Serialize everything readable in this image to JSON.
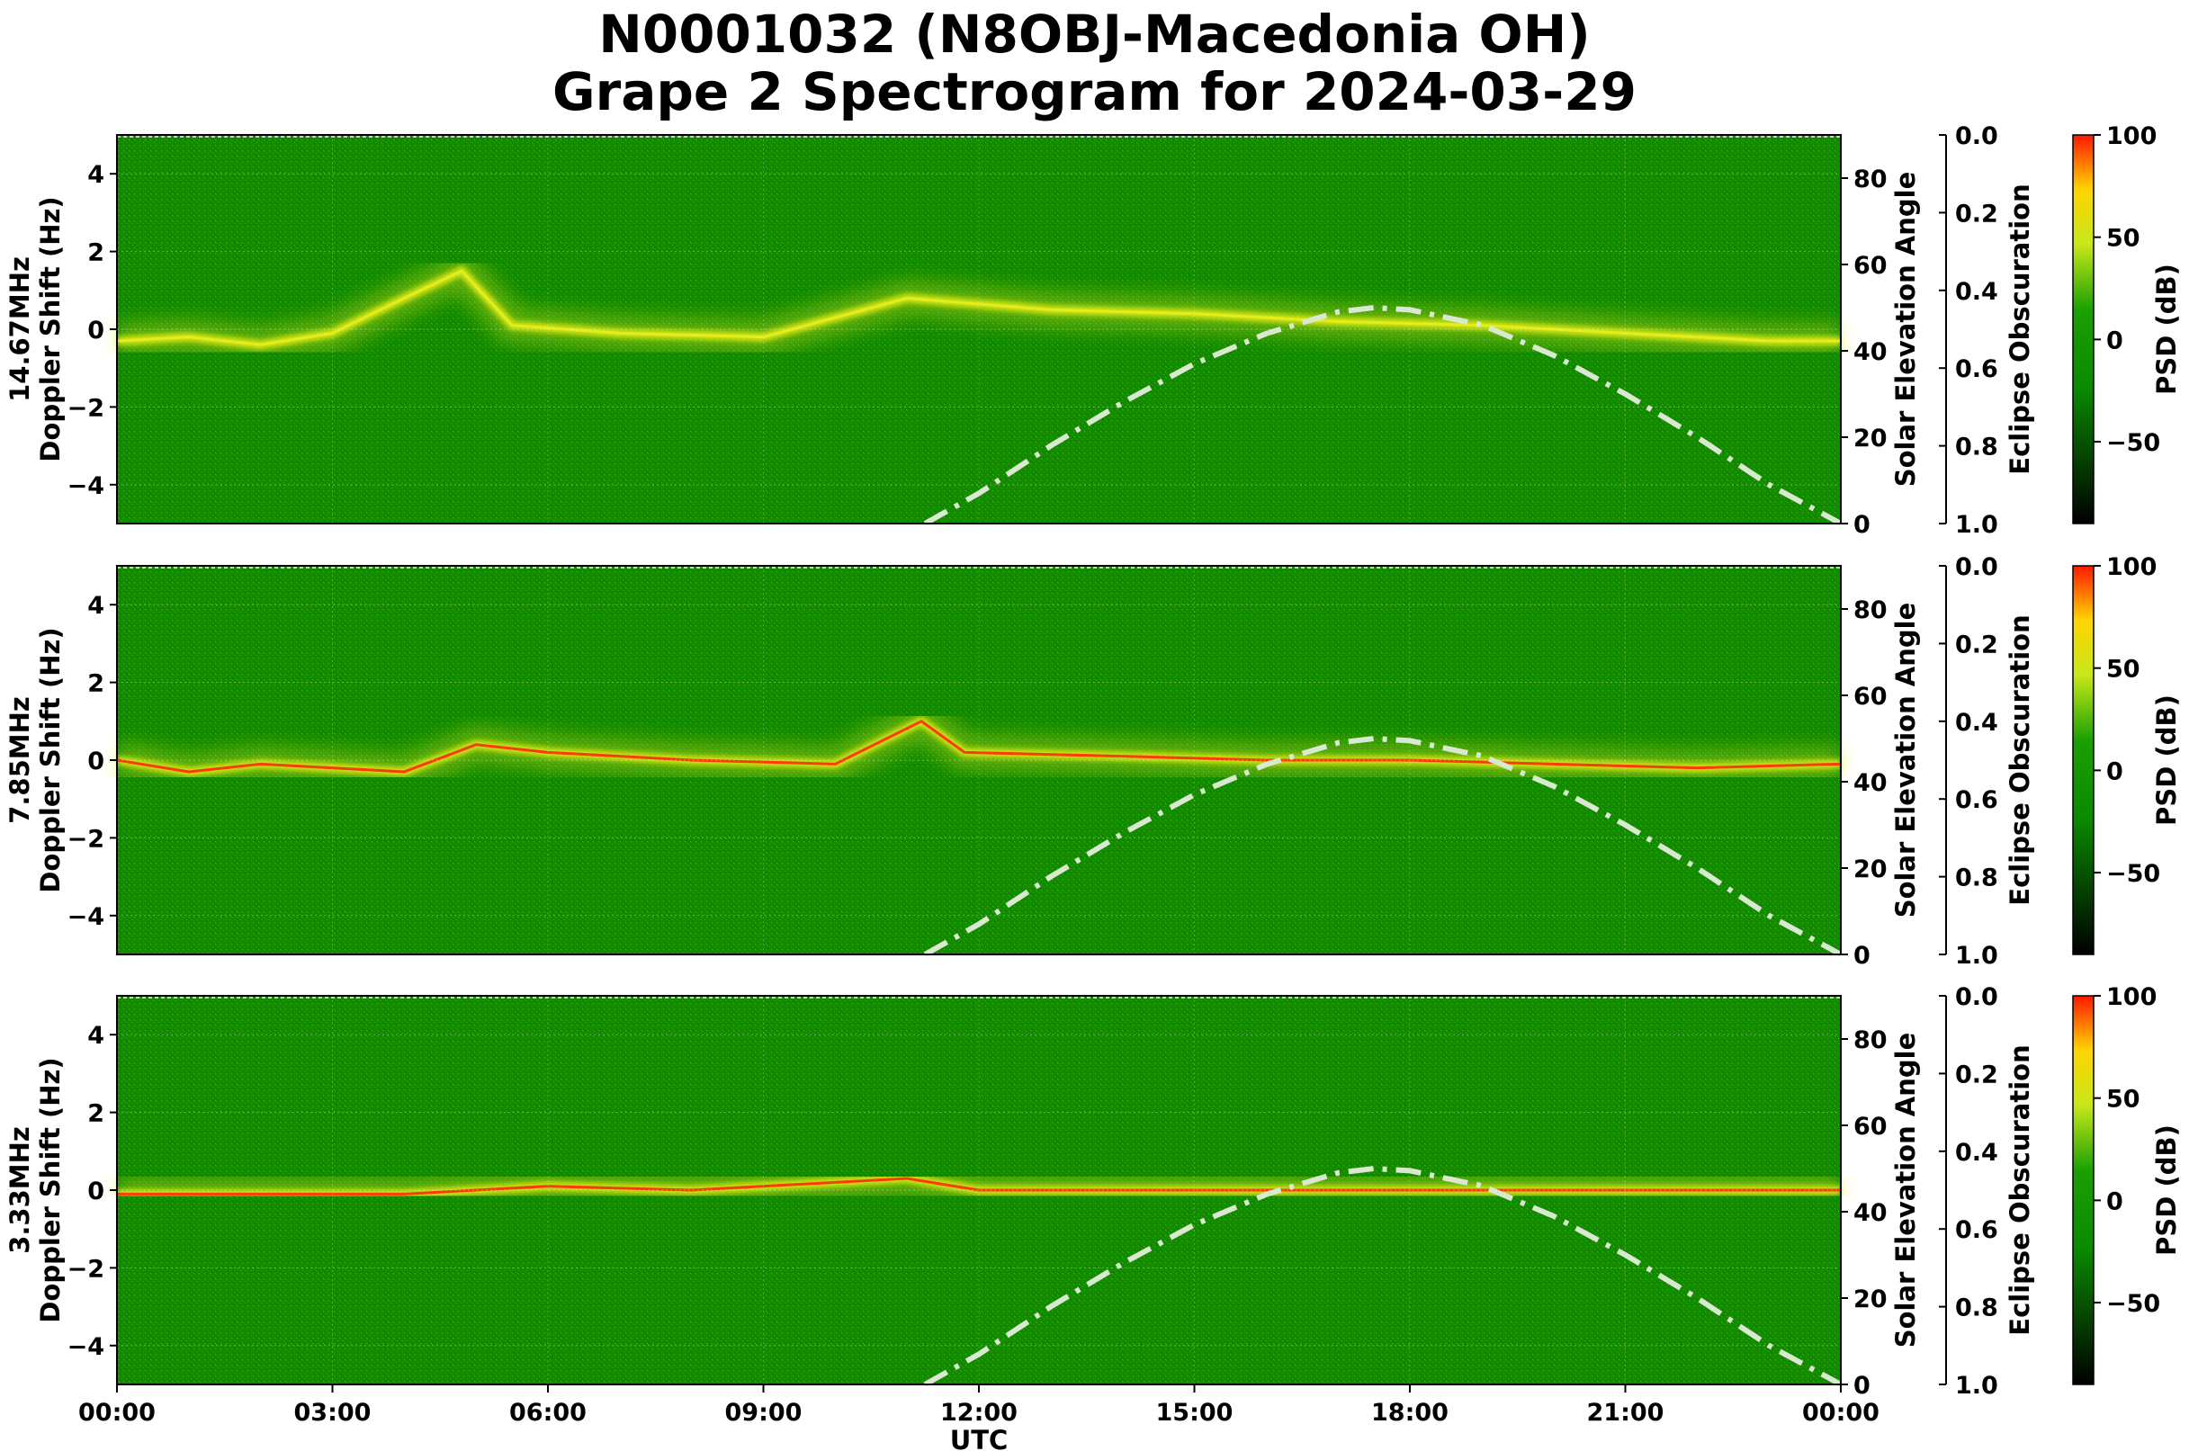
{
  "title_line1": "N0001032 (N8OBJ-Macedonia OH)",
  "title_line2": "Grape 2 Spectrogram for 2024-03-29",
  "colors": {
    "background_green": "#118a00",
    "signal_yellow": "#e8ee1a",
    "signal_red": "#ff2a00",
    "sun_curve": "#d9e8d0"
  },
  "chart_data": [
    {
      "type": "heatmap",
      "band": "14.67MHz",
      "ylabel": "14.67MHz\nDoppler Shift (Hz)",
      "ylim": [
        -5,
        5
      ],
      "y_ticks": [
        "4",
        "2",
        "0",
        "−2",
        "−4"
      ],
      "y2label": "Solar Elevation Angle",
      "y2lim": [
        0,
        90
      ],
      "y2_ticks": [
        "0",
        "20",
        "40",
        "60",
        "80"
      ],
      "y3label": "Eclipse Obscuration",
      "y3lim": [
        1.0,
        0.0
      ],
      "y3_ticks": [
        "0.0",
        "0.2",
        "0.4",
        "0.6",
        "0.8",
        "1.0"
      ],
      "colorbar_label": "PSD (dB)",
      "colorbar_ticks": [
        "100",
        "50",
        "0",
        "−50"
      ],
      "carrier_trace": [
        [
          0,
          -0.3
        ],
        [
          1,
          -0.2
        ],
        [
          2,
          -0.4
        ],
        [
          3,
          -0.1
        ],
        [
          4,
          0.8
        ],
        [
          4.8,
          1.5
        ],
        [
          5.5,
          0.1
        ],
        [
          7,
          -0.1
        ],
        [
          9,
          -0.2
        ],
        [
          11,
          0.8
        ],
        [
          13,
          0.5
        ],
        [
          15,
          0.4
        ],
        [
          17,
          0.2
        ],
        [
          19,
          0.1
        ],
        [
          21,
          -0.1
        ],
        [
          23,
          -0.3
        ],
        [
          24,
          -0.3
        ]
      ],
      "grid": true
    },
    {
      "type": "heatmap",
      "band": "7.85MHz",
      "ylabel": "7.85MHz\nDoppler Shift (Hz)",
      "ylim": [
        -5,
        5
      ],
      "y_ticks": [
        "4",
        "2",
        "0",
        "−2",
        "−4"
      ],
      "y2label": "Solar Elevation Angle",
      "y2lim": [
        0,
        90
      ],
      "y2_ticks": [
        "0",
        "20",
        "40",
        "60",
        "80"
      ],
      "y3label": "Eclipse Obscuration",
      "y3lim": [
        1.0,
        0.0
      ],
      "y3_ticks": [
        "0.0",
        "0.2",
        "0.4",
        "0.6",
        "0.8",
        "1.0"
      ],
      "colorbar_label": "PSD (dB)",
      "colorbar_ticks": [
        "100",
        "50",
        "0",
        "−50"
      ],
      "carrier_trace": [
        [
          0,
          0
        ],
        [
          1,
          -0.3
        ],
        [
          2,
          -0.1
        ],
        [
          3,
          -0.2
        ],
        [
          4,
          -0.3
        ],
        [
          5,
          0.4
        ],
        [
          6,
          0.2
        ],
        [
          7,
          0.1
        ],
        [
          8,
          0.0
        ],
        [
          10,
          -0.1
        ],
        [
          11.2,
          1.0
        ],
        [
          11.8,
          0.2
        ],
        [
          14,
          0.1
        ],
        [
          16,
          0.0
        ],
        [
          18,
          0.0
        ],
        [
          20,
          -0.1
        ],
        [
          22,
          -0.2
        ],
        [
          24,
          -0.1
        ]
      ],
      "grid": true
    },
    {
      "type": "heatmap",
      "band": "3.33MHz",
      "ylabel": "3.33MHz\nDoppler Shift (Hz)",
      "ylim": [
        -5,
        5
      ],
      "y_ticks": [
        "4",
        "2",
        "0",
        "−2",
        "−4"
      ],
      "y2label": "Solar Elevation Angle",
      "y2lim": [
        0,
        90
      ],
      "y2_ticks": [
        "0",
        "20",
        "40",
        "60",
        "80"
      ],
      "y3label": "Eclipse Obscuration",
      "y3lim": [
        1.0,
        0.0
      ],
      "y3_ticks": [
        "0.0",
        "0.2",
        "0.4",
        "0.6",
        "0.8",
        "1.0"
      ],
      "colorbar_label": "PSD (dB)",
      "colorbar_ticks": [
        "100",
        "50",
        "0",
        "−50"
      ],
      "carrier_trace": [
        [
          0,
          -0.1
        ],
        [
          2,
          -0.1
        ],
        [
          4,
          -0.1
        ],
        [
          6,
          0.1
        ],
        [
          8,
          0.0
        ],
        [
          10,
          0.2
        ],
        [
          11,
          0.3
        ],
        [
          12,
          0.0
        ],
        [
          18,
          0.0
        ],
        [
          22,
          0.0
        ],
        [
          24,
          0.0
        ]
      ],
      "grid": true
    }
  ],
  "x_axis": {
    "label": "UTC",
    "range_hours": [
      0,
      24
    ],
    "ticks": [
      "00:00",
      "03:00",
      "06:00",
      "09:00",
      "12:00",
      "15:00",
      "18:00",
      "21:00",
      "00:00"
    ]
  },
  "solar_elevation_curve": {
    "style": "dash-dot",
    "points": [
      [
        11.25,
        0
      ],
      [
        12,
        7
      ],
      [
        13,
        18
      ],
      [
        14,
        28
      ],
      [
        15,
        37
      ],
      [
        16,
        44
      ],
      [
        17,
        49
      ],
      [
        17.5,
        50
      ],
      [
        18,
        49.5
      ],
      [
        19,
        46
      ],
      [
        20,
        39
      ],
      [
        21,
        30
      ],
      [
        22,
        20
      ],
      [
        23,
        9
      ],
      [
        24,
        0
      ]
    ]
  }
}
